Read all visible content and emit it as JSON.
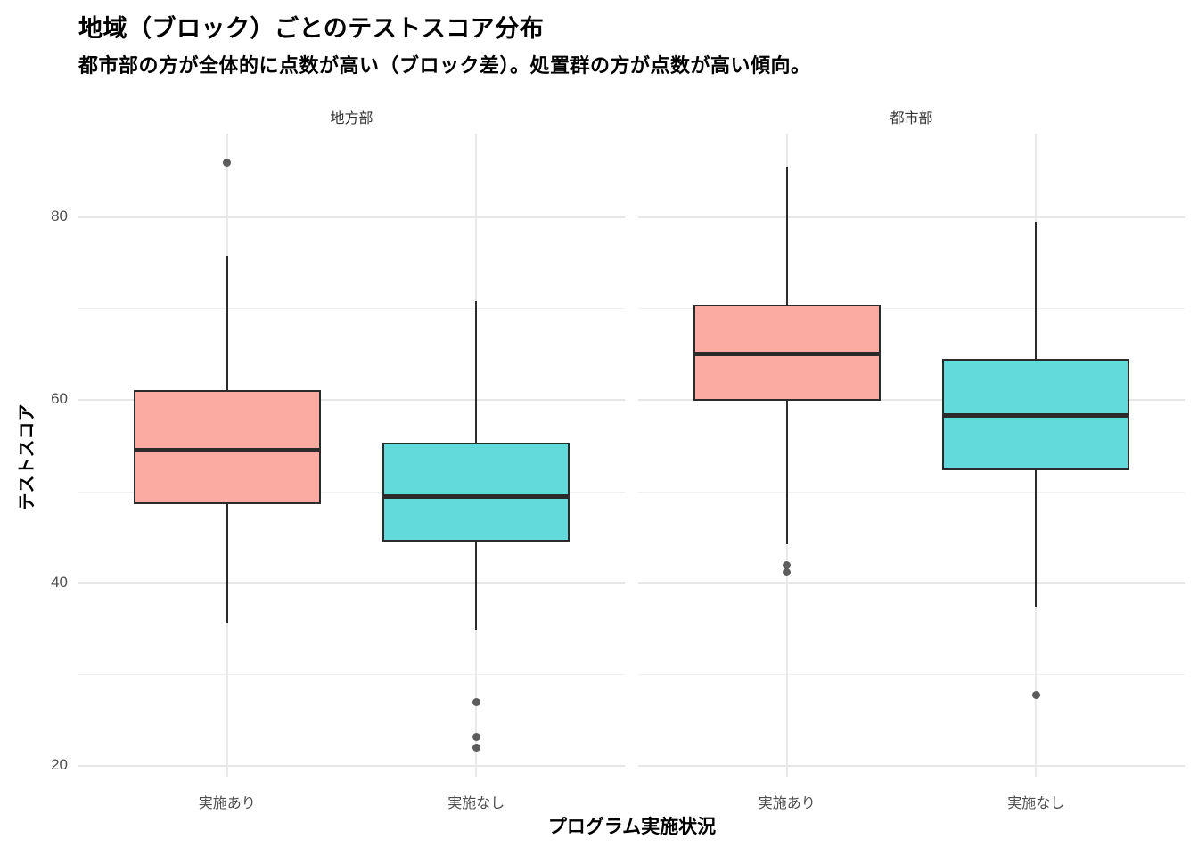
{
  "title": "地域（ブロック）ごとのテストスコア分布",
  "subtitle": "都市部の方が全体的に点数が高い（ブロック差）。処置群の方が点数が高い傾向。",
  "chart_data": {
    "type": "boxplot",
    "title": "地域（ブロック）ごとのテストスコア分布",
    "subtitle": "都市部の方が全体的に点数が高い（ブロック差）。処置群の方が点数が高い傾向。",
    "xlabel": "プログラム実施状況",
    "ylabel": "テストスコア",
    "ylim": [
      18.8,
      89.2
    ],
    "y_ticks": [
      20,
      40,
      60,
      80
    ],
    "y_minor": [
      30,
      50,
      70
    ],
    "grid": true,
    "legend": "none",
    "colors": {
      "treated_fill": "#FBABA1",
      "control_fill": "#62D9DB",
      "stroke": "#2B2B2B",
      "outlier": "#5C5C5C",
      "grid_major": "#E7E7E7",
      "grid_minor": "#F0F0F0"
    },
    "facets": [
      {
        "label": "地方部",
        "boxes": [
          {
            "category": "実施あり",
            "group": "treated",
            "fill": "#FBABA1",
            "whisker_low": 35.7,
            "q1": 48.6,
            "median": 54.5,
            "q3": 61.1,
            "whisker_high": 75.7,
            "outliers": [
              86.0
            ]
          },
          {
            "category": "実施なし",
            "group": "control",
            "fill": "#62D9DB",
            "whisker_low": 34.9,
            "q1": 44.5,
            "median": 49.5,
            "q3": 55.4,
            "whisker_high": 70.9,
            "outliers": [
              26.9,
              23.1,
              22.0
            ]
          }
        ]
      },
      {
        "label": "都市部",
        "boxes": [
          {
            "category": "実施あり",
            "group": "treated",
            "fill": "#FBABA1",
            "whisker_low": 44.2,
            "q1": 59.9,
            "median": 65.1,
            "q3": 70.5,
            "whisker_high": 85.5,
            "outliers": [
              42.0,
              41.2
            ]
          },
          {
            "category": "実施なし",
            "group": "control",
            "fill": "#62D9DB",
            "whisker_low": 37.4,
            "q1": 52.3,
            "median": 58.3,
            "q3": 64.5,
            "whisker_high": 79.5,
            "outliers": [
              27.7
            ]
          }
        ]
      }
    ]
  }
}
